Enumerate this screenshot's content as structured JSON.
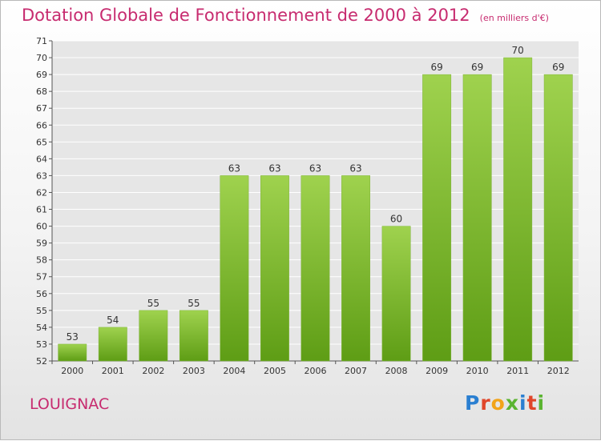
{
  "title": "Dotation Globale de Fonctionnement de 2000 à 2012",
  "subtitle": "(en milliers d'€)",
  "commune": "LOUIGNAC",
  "logo": {
    "text": "Proxiti",
    "icon": "proxiti-logo-icon"
  },
  "colors": {
    "bar_light": "#9fd24e",
    "bar_dark": "#5e9d15",
    "title": "#c72b6f",
    "grid": "#ffffff",
    "plot_bg": "#e6e6e6"
  },
  "chart_data": {
    "type": "bar",
    "title": "Dotation Globale de Fonctionnement de 2000 à 2012",
    "subtitle": "(en milliers d'€)",
    "categories": [
      "2000",
      "2001",
      "2002",
      "2003",
      "2004",
      "2005",
      "2006",
      "2007",
      "2008",
      "2009",
      "2010",
      "2011",
      "2012"
    ],
    "values": [
      53,
      54,
      55,
      55,
      63,
      63,
      63,
      63,
      60,
      69,
      69,
      70,
      69
    ],
    "ylim": [
      52,
      71
    ],
    "yticks": [
      52,
      53,
      54,
      55,
      56,
      57,
      58,
      59,
      60,
      61,
      62,
      63,
      64,
      65,
      66,
      67,
      68,
      69,
      70,
      71
    ],
    "xlabel": "",
    "ylabel": "",
    "grid": true,
    "legend": "none"
  }
}
